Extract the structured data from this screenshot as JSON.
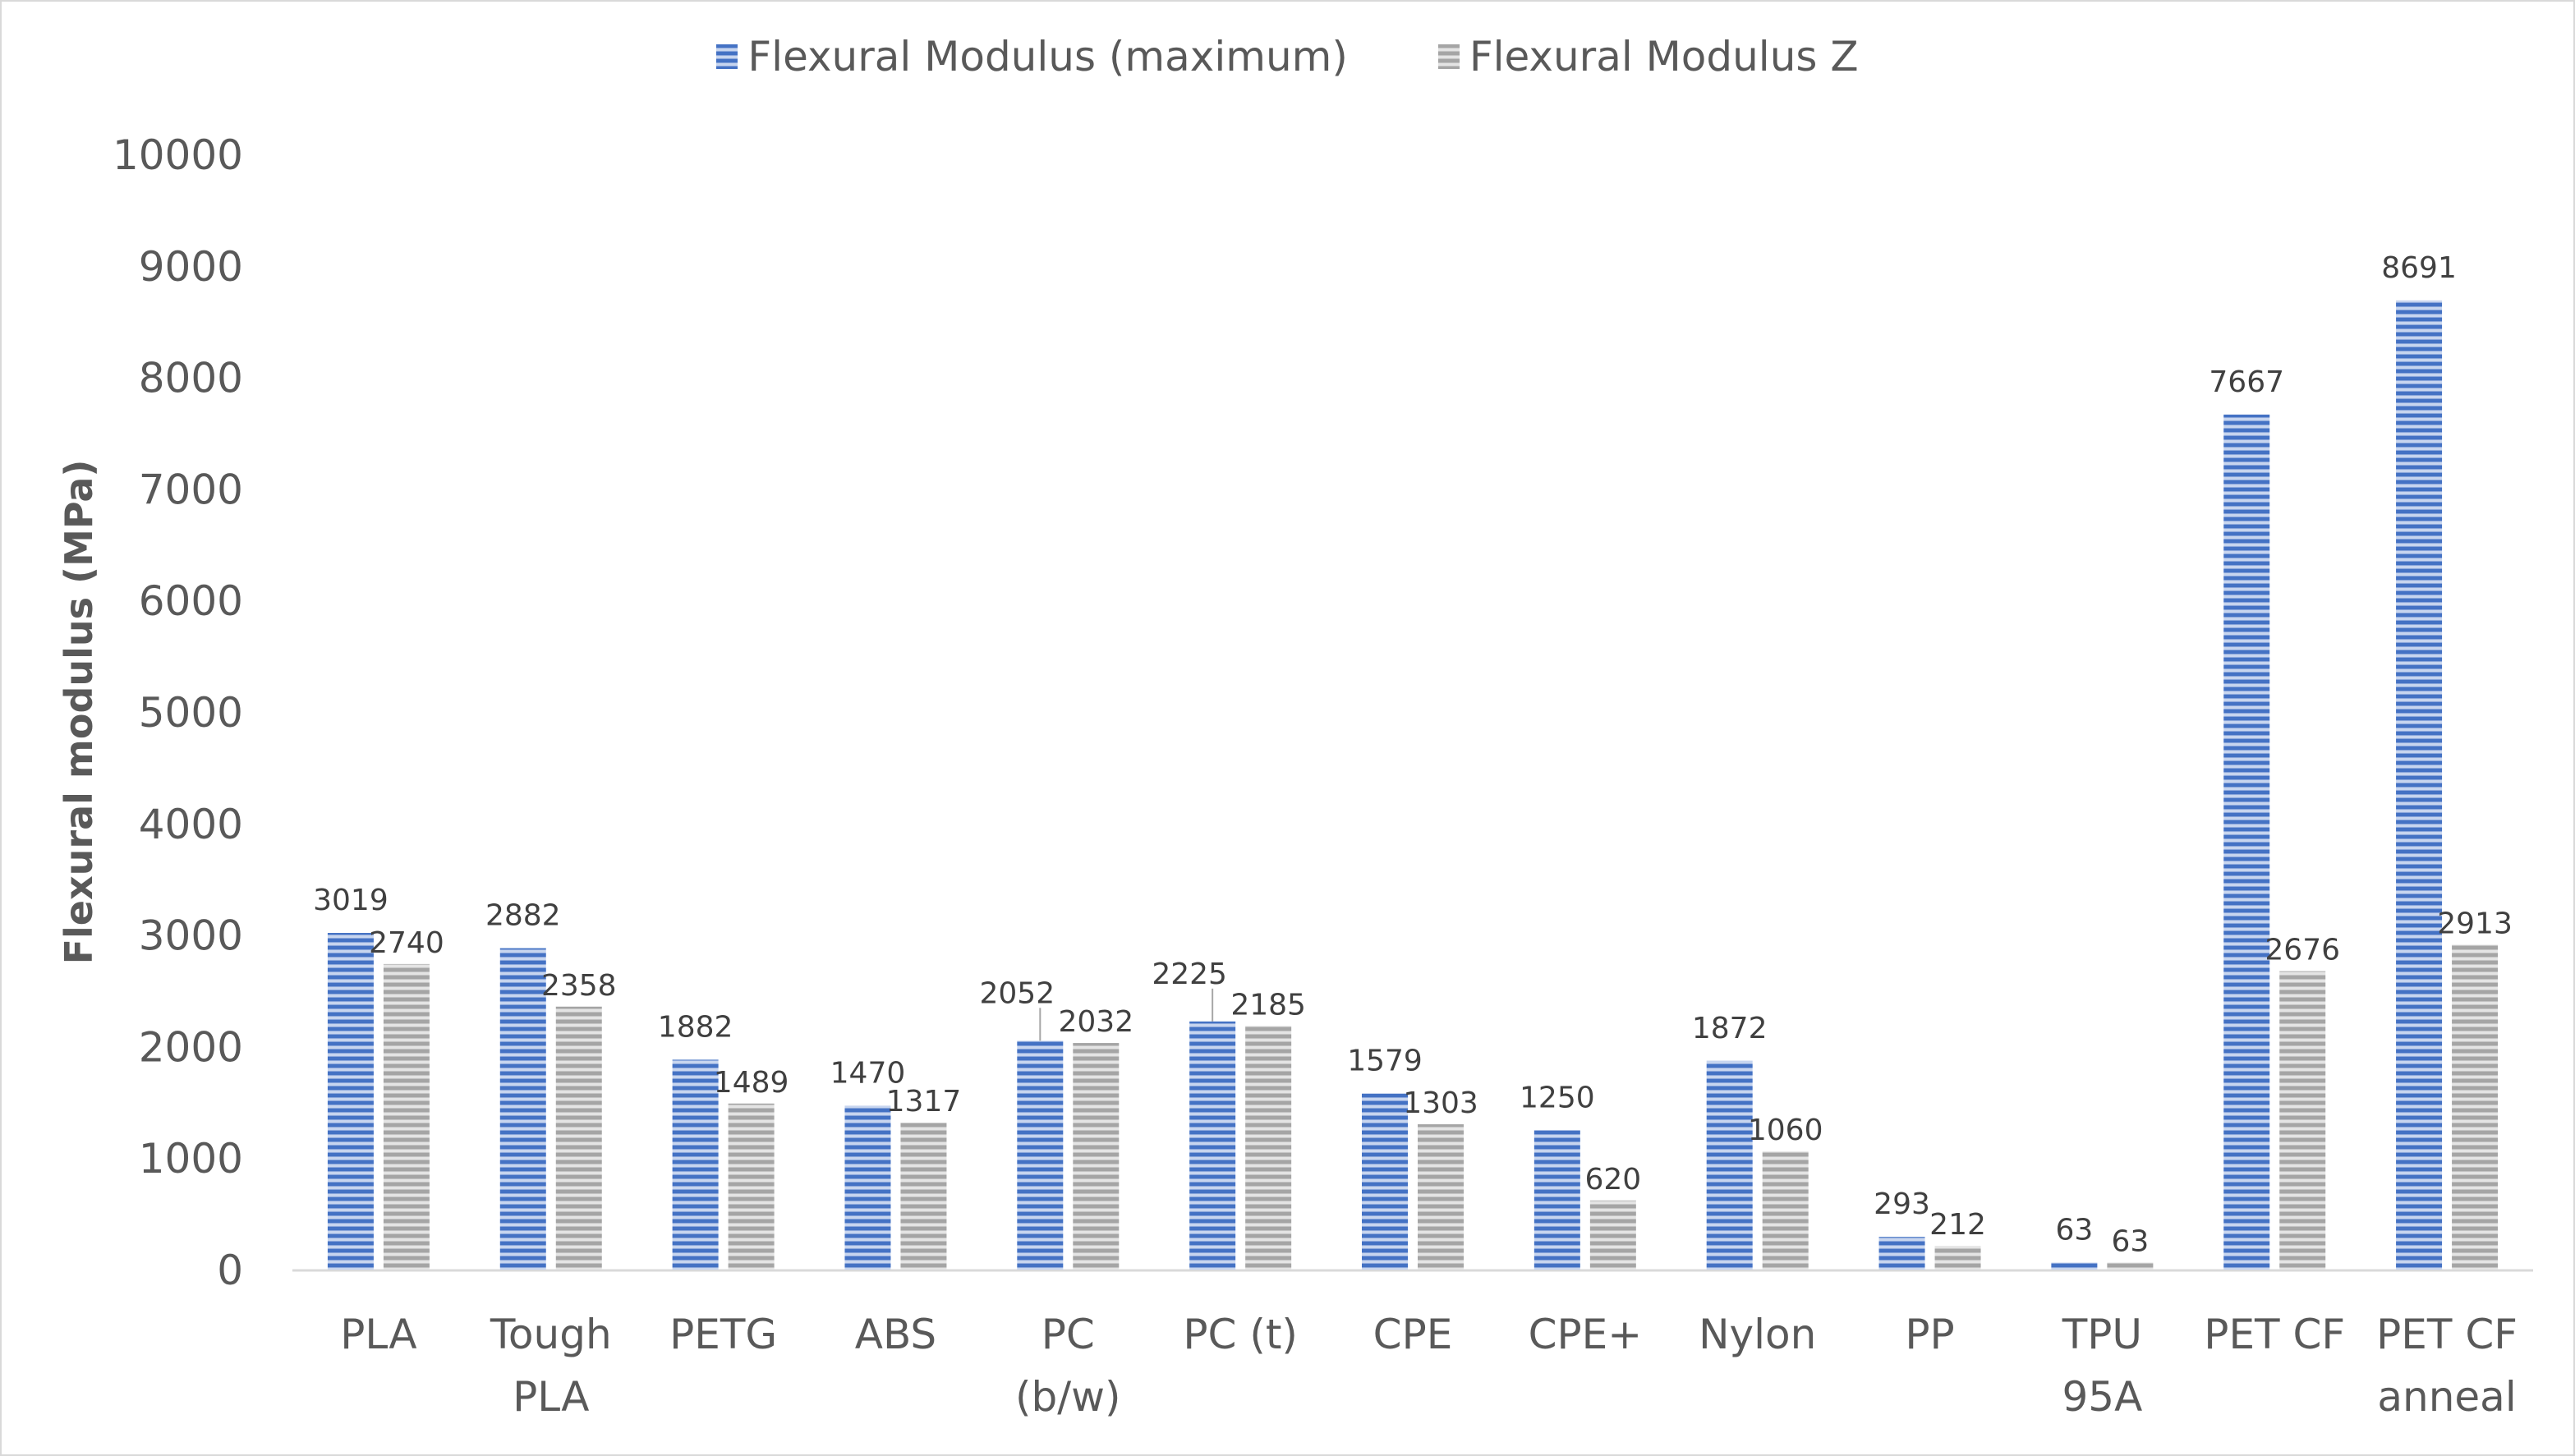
{
  "chart_data": {
    "type": "bar",
    "title": "",
    "xlabel": "",
    "ylabel": "Flexural modulus (MPa)",
    "ylim": [
      0,
      10000
    ],
    "yticks": [
      "0",
      "1000",
      "2000",
      "3000",
      "4000",
      "5000",
      "6000",
      "7000",
      "8000",
      "9000",
      "10000"
    ],
    "grid": false,
    "legend": "top",
    "categories": [
      [
        "PLA"
      ],
      [
        "Tough",
        "PLA"
      ],
      [
        "PETG"
      ],
      [
        "ABS"
      ],
      [
        "PC",
        "(b/w)"
      ],
      [
        "PC (t)"
      ],
      [
        "CPE"
      ],
      [
        "CPE+"
      ],
      [
        "Nylon"
      ],
      [
        "PP"
      ],
      [
        "TPU",
        "95A"
      ],
      [
        "PET CF"
      ],
      [
        "PET CF",
        "anneal"
      ]
    ],
    "series": [
      {
        "name": "Flexural Modulus (maximum)",
        "color": "#4472C4",
        "pattern": "horizontal-stripes",
        "values": [
          3019,
          2882,
          1882,
          1470,
          2052,
          2225,
          1579,
          1250,
          1872,
          293,
          63,
          7667,
          8691
        ]
      },
      {
        "name": "Flexural Modulus Z",
        "color": "#A5A5A5",
        "pattern": "horizontal-stripes",
        "values": [
          2740,
          2358,
          1489,
          1317,
          2032,
          2185,
          1303,
          620,
          1060,
          212,
          63,
          2676,
          2913
        ]
      }
    ]
  }
}
